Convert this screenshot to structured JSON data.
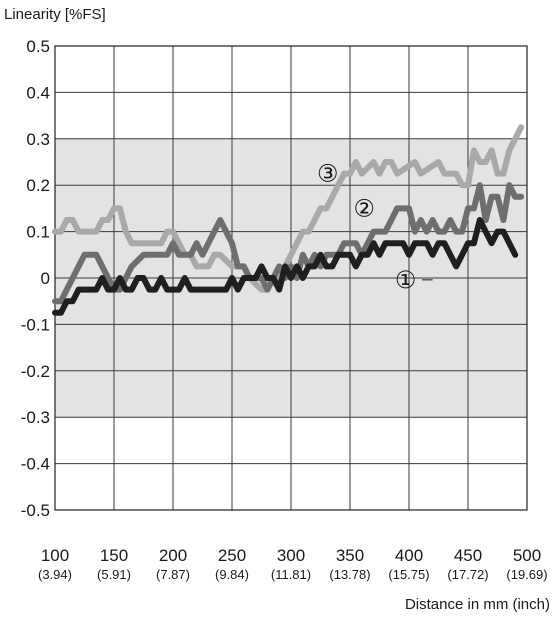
{
  "chart_data": {
    "type": "line",
    "title": "",
    "ylabel": "Linearity [%FS]",
    "xlabel": "Distance in mm (inch)",
    "xlim": [
      100,
      500
    ],
    "ylim": [
      -0.5,
      0.5
    ],
    "grid": true,
    "band": {
      "from": -0.3,
      "to": 0.3,
      "color": "#e3e3e3"
    },
    "y_ticks": [
      {
        "value": 0.5,
        "label": "0.5"
      },
      {
        "value": 0.4,
        "label": "0.4"
      },
      {
        "value": 0.3,
        "label": "0.3"
      },
      {
        "value": 0.2,
        "label": "0.2"
      },
      {
        "value": 0.1,
        "label": "0.1"
      },
      {
        "value": 0,
        "label": "0"
      },
      {
        "value": -0.1,
        "label": "-0.1"
      },
      {
        "value": -0.2,
        "label": "-0.2"
      },
      {
        "value": -0.3,
        "label": "-0.3"
      },
      {
        "value": -0.4,
        "label": "-0.4"
      },
      {
        "value": -0.5,
        "label": "-0.5"
      }
    ],
    "x_ticks": [
      {
        "value": 100,
        "label": "100",
        "sublabel": "(3.94)"
      },
      {
        "value": 150,
        "label": "150",
        "sublabel": "(5.91)"
      },
      {
        "value": 200,
        "label": "200",
        "sublabel": "(7.87)"
      },
      {
        "value": 250,
        "label": "250",
        "sublabel": "(9.84)"
      },
      {
        "value": 300,
        "label": "300",
        "sublabel": "(11.81)"
      },
      {
        "value": 350,
        "label": "350",
        "sublabel": "(13.78)"
      },
      {
        "value": 400,
        "label": "400",
        "sublabel": "(15.75)"
      },
      {
        "value": 450,
        "label": "450",
        "sublabel": "(17.72)"
      },
      {
        "value": 500,
        "label": "500",
        "sublabel": "(19.69)"
      }
    ],
    "series": [
      {
        "name": "③",
        "color": "#a9a9a9",
        "values": [
          [
            100,
            0.1
          ],
          [
            105,
            0.1
          ],
          [
            110,
            0.125
          ],
          [
            115,
            0.125
          ],
          [
            120,
            0.1
          ],
          [
            135,
            0.1
          ],
          [
            140,
            0.125
          ],
          [
            145,
            0.125
          ],
          [
            150,
            0.15
          ],
          [
            155,
            0.15
          ],
          [
            160,
            0.1
          ],
          [
            165,
            0.075
          ],
          [
            190,
            0.075
          ],
          [
            195,
            0.1
          ],
          [
            200,
            0.1
          ],
          [
            205,
            0.075
          ],
          [
            210,
            0.05
          ],
          [
            215,
            0.05
          ],
          [
            220,
            0.025
          ],
          [
            230,
            0.025
          ],
          [
            235,
            0.05
          ],
          [
            240,
            0.05
          ],
          [
            250,
            0.025
          ],
          [
            260,
            0.025
          ],
          [
            265,
            0.0
          ],
          [
            275,
            -0.025
          ],
          [
            280,
            -0.025
          ],
          [
            285,
            0.0
          ],
          [
            290,
            0.0
          ],
          [
            295,
            0.025
          ],
          [
            300,
            0.05
          ],
          [
            305,
            0.075
          ],
          [
            310,
            0.1
          ],
          [
            315,
            0.1
          ],
          [
            320,
            0.125
          ],
          [
            325,
            0.15
          ],
          [
            330,
            0.15
          ],
          [
            335,
            0.175
          ],
          [
            340,
            0.2
          ],
          [
            345,
            0.225
          ],
          [
            350,
            0.225
          ],
          [
            355,
            0.25
          ],
          [
            360,
            0.225
          ],
          [
            370,
            0.25
          ],
          [
            375,
            0.225
          ],
          [
            380,
            0.25
          ],
          [
            385,
            0.25
          ],
          [
            390,
            0.225
          ],
          [
            405,
            0.25
          ],
          [
            410,
            0.225
          ],
          [
            425,
            0.25
          ],
          [
            430,
            0.225
          ],
          [
            440,
            0.225
          ],
          [
            445,
            0.2
          ],
          [
            450,
            0.2
          ],
          [
            455,
            0.275
          ],
          [
            460,
            0.25
          ],
          [
            465,
            0.25
          ],
          [
            470,
            0.275
          ],
          [
            475,
            0.225
          ],
          [
            480,
            0.225
          ],
          [
            485,
            0.275
          ],
          [
            490,
            0.3
          ],
          [
            495,
            0.325
          ]
        ]
      },
      {
        "name": "②",
        "color": "#6e6e6e",
        "values": [
          [
            100,
            -0.05
          ],
          [
            105,
            -0.05
          ],
          [
            110,
            -0.025
          ],
          [
            115,
            0.0
          ],
          [
            120,
            0.025
          ],
          [
            125,
            0.05
          ],
          [
            135,
            0.05
          ],
          [
            140,
            0.025
          ],
          [
            145,
            0.0
          ],
          [
            150,
            -0.025
          ],
          [
            155,
            -0.025
          ],
          [
            160,
            0.0
          ],
          [
            165,
            0.025
          ],
          [
            175,
            0.05
          ],
          [
            195,
            0.05
          ],
          [
            200,
            0.075
          ],
          [
            205,
            0.05
          ],
          [
            215,
            0.05
          ],
          [
            220,
            0.075
          ],
          [
            225,
            0.05
          ],
          [
            230,
            0.075
          ],
          [
            235,
            0.1
          ],
          [
            240,
            0.125
          ],
          [
            245,
            0.1
          ],
          [
            250,
            0.075
          ],
          [
            255,
            0.025
          ],
          [
            260,
            0.025
          ],
          [
            265,
            0.0
          ],
          [
            275,
            0.0
          ],
          [
            280,
            -0.025
          ],
          [
            285,
            0.0
          ],
          [
            290,
            0.025
          ],
          [
            295,
            0.0
          ],
          [
            300,
            0.025
          ],
          [
            305,
            0.0
          ],
          [
            310,
            0.05
          ],
          [
            315,
            0.025
          ],
          [
            320,
            0.05
          ],
          [
            325,
            0.025
          ],
          [
            330,
            0.05
          ],
          [
            340,
            0.05
          ],
          [
            345,
            0.075
          ],
          [
            350,
            0.075
          ],
          [
            355,
            0.075
          ],
          [
            360,
            0.05
          ],
          [
            365,
            0.075
          ],
          [
            370,
            0.1
          ],
          [
            380,
            0.1
          ],
          [
            385,
            0.125
          ],
          [
            390,
            0.15
          ],
          [
            400,
            0.15
          ],
          [
            405,
            0.1
          ],
          [
            410,
            0.125
          ],
          [
            415,
            0.1
          ],
          [
            420,
            0.125
          ],
          [
            425,
            0.1
          ],
          [
            430,
            0.1
          ],
          [
            435,
            0.125
          ],
          [
            440,
            0.1
          ],
          [
            445,
            0.1
          ],
          [
            450,
            0.15
          ],
          [
            455,
            0.15
          ],
          [
            460,
            0.2
          ],
          [
            465,
            0.125
          ],
          [
            470,
            0.175
          ],
          [
            475,
            0.175
          ],
          [
            480,
            0.125
          ],
          [
            485,
            0.2
          ],
          [
            490,
            0.175
          ],
          [
            495,
            0.175
          ]
        ]
      },
      {
        "name": "①",
        "color": "#1f1f1f",
        "values": [
          [
            100,
            -0.075
          ],
          [
            105,
            -0.075
          ],
          [
            110,
            -0.05
          ],
          [
            115,
            -0.05
          ],
          [
            120,
            -0.025
          ],
          [
            135,
            -0.025
          ],
          [
            140,
            0.0
          ],
          [
            145,
            -0.025
          ],
          [
            150,
            -0.025
          ],
          [
            155,
            0.0
          ],
          [
            160,
            -0.025
          ],
          [
            165,
            -0.025
          ],
          [
            170,
            0.0
          ],
          [
            175,
            0.0
          ],
          [
            180,
            -0.025
          ],
          [
            185,
            -0.025
          ],
          [
            190,
            0.0
          ],
          [
            195,
            -0.025
          ],
          [
            205,
            -0.025
          ],
          [
            210,
            0.0
          ],
          [
            215,
            -0.025
          ],
          [
            245,
            -0.025
          ],
          [
            250,
            0.0
          ],
          [
            255,
            -0.025
          ],
          [
            260,
            0.0
          ],
          [
            270,
            0.0
          ],
          [
            275,
            0.025
          ],
          [
            280,
            0.0
          ],
          [
            285,
            0.0
          ],
          [
            290,
            -0.025
          ],
          [
            295,
            0.025
          ],
          [
            300,
            0.0
          ],
          [
            305,
            0.025
          ],
          [
            310,
            0.0
          ],
          [
            315,
            0.025
          ],
          [
            320,
            0.025
          ],
          [
            325,
            0.05
          ],
          [
            330,
            0.025
          ],
          [
            335,
            0.025
          ],
          [
            340,
            0.05
          ],
          [
            350,
            0.05
          ],
          [
            355,
            0.025
          ],
          [
            360,
            0.05
          ],
          [
            365,
            0.05
          ],
          [
            370,
            0.075
          ],
          [
            375,
            0.05
          ],
          [
            380,
            0.075
          ],
          [
            395,
            0.075
          ],
          [
            400,
            0.05
          ],
          [
            405,
            0.075
          ],
          [
            415,
            0.075
          ],
          [
            420,
            0.05
          ],
          [
            425,
            0.075
          ],
          [
            430,
            0.075
          ],
          [
            435,
            0.05
          ],
          [
            440,
            0.025
          ],
          [
            445,
            0.05
          ],
          [
            450,
            0.075
          ],
          [
            455,
            0.075
          ],
          [
            460,
            0.125
          ],
          [
            465,
            0.1
          ],
          [
            470,
            0.075
          ],
          [
            475,
            0.1
          ],
          [
            480,
            0.1
          ],
          [
            485,
            0.075
          ],
          [
            490,
            0.05
          ]
        ]
      }
    ],
    "annotations": [
      {
        "text": "③",
        "x": 331,
        "y": 0.225
      },
      {
        "text": "②",
        "x": 362,
        "y": 0.15
      },
      {
        "text": "①",
        "x": 397,
        "y": -0.004
      }
    ]
  }
}
